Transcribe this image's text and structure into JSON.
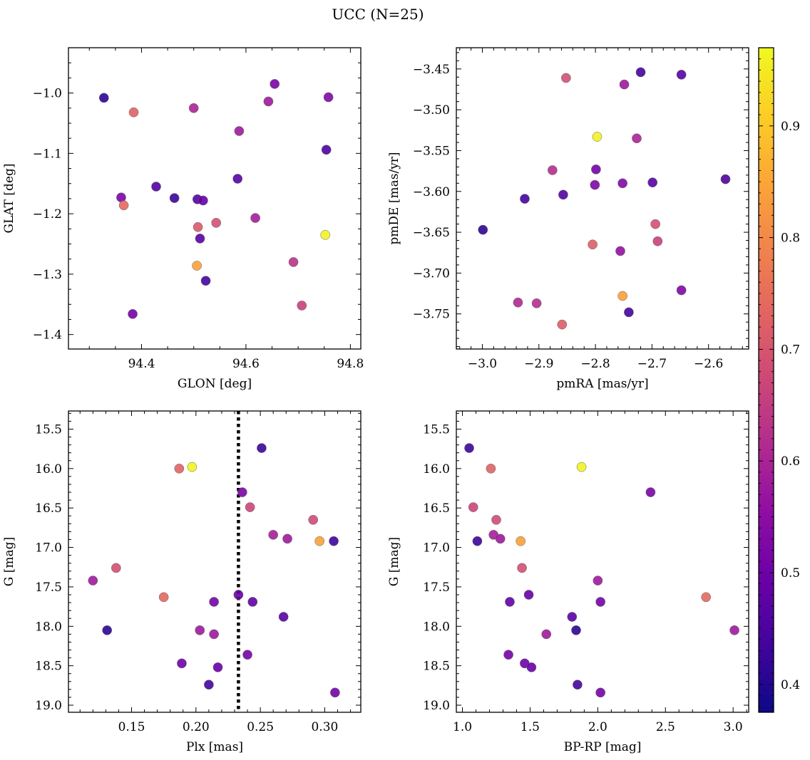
{
  "figure": {
    "title": "UCC (N=25)"
  },
  "colorbar": {
    "min": 0.375,
    "max": 0.97,
    "ticks": [
      0.4,
      0.5,
      0.6,
      0.7,
      0.8,
      0.9
    ],
    "tick_labels": [
      "0.4",
      "0.5",
      "0.6",
      "0.7",
      "0.8",
      "0.9"
    ],
    "colormap": "plasma"
  },
  "chart_data": [
    {
      "type": "scatter",
      "title": "",
      "xlabel": "GLON [deg]",
      "ylabel": "GLAT [deg]",
      "xlim": [
        94.26,
        94.82
      ],
      "ylim": [
        -1.424,
        -0.925
      ],
      "yinvert": false,
      "xticks": [
        94.4,
        94.6,
        94.8
      ],
      "xtick_labels": [
        "94.4",
        "94.6",
        "94.8"
      ],
      "xminor": 0.05,
      "yticks": [
        -1.0,
        -1.1,
        -1.2,
        -1.3,
        -1.4
      ],
      "ytick_labels": [
        "−1.0",
        "−1.1",
        "−1.2",
        "−1.3",
        "−1.4"
      ],
      "yminor": 0.025,
      "vline": null,
      "points": [
        {
          "x": 94.328,
          "y": -1.008,
          "c": 0.41
        },
        {
          "x": 94.385,
          "y": -1.032,
          "c": 0.73
        },
        {
          "x": 94.5,
          "y": -1.025,
          "c": 0.6
        },
        {
          "x": 94.655,
          "y": -0.985,
          "c": 0.52
        },
        {
          "x": 94.643,
          "y": -1.014,
          "c": 0.58
        },
        {
          "x": 94.758,
          "y": -1.007,
          "c": 0.53
        },
        {
          "x": 94.587,
          "y": -1.063,
          "c": 0.58
        },
        {
          "x": 94.754,
          "y": -1.094,
          "c": 0.45
        },
        {
          "x": 94.584,
          "y": -1.142,
          "c": 0.47
        },
        {
          "x": 94.428,
          "y": -1.155,
          "c": 0.46
        },
        {
          "x": 94.361,
          "y": -1.173,
          "c": 0.52
        },
        {
          "x": 94.463,
          "y": -1.174,
          "c": 0.43
        },
        {
          "x": 94.507,
          "y": -1.176,
          "c": 0.46
        },
        {
          "x": 94.518,
          "y": -1.178,
          "c": 0.49
        },
        {
          "x": 94.366,
          "y": -1.186,
          "c": 0.74
        },
        {
          "x": 94.618,
          "y": -1.207,
          "c": 0.59
        },
        {
          "x": 94.543,
          "y": -1.215,
          "c": 0.69
        },
        {
          "x": 94.508,
          "y": -1.222,
          "c": 0.71
        },
        {
          "x": 94.752,
          "y": -1.235,
          "c": 0.96
        },
        {
          "x": 94.512,
          "y": -1.241,
          "c": 0.47
        },
        {
          "x": 94.691,
          "y": -1.28,
          "c": 0.63
        },
        {
          "x": 94.506,
          "y": -1.286,
          "c": 0.84
        },
        {
          "x": 94.523,
          "y": -1.311,
          "c": 0.44
        },
        {
          "x": 94.707,
          "y": -1.352,
          "c": 0.66
        },
        {
          "x": 94.383,
          "y": -1.366,
          "c": 0.51
        }
      ]
    },
    {
      "type": "scatter",
      "title": "",
      "xlabel": "pmRA [mas/yr]",
      "ylabel": "pmDE [mas/yr]",
      "xlim": [
        -3.046,
        -2.529
      ],
      "ylim": [
        -3.793,
        -3.424
      ],
      "yinvert": false,
      "xticks": [
        -3.0,
        -2.9,
        -2.8,
        -2.7,
        -2.6
      ],
      "xtick_labels": [
        "−3.0",
        "−2.9",
        "−2.8",
        "−2.7",
        "−2.6"
      ],
      "xminor": 0.02,
      "yticks": [
        -3.45,
        -3.5,
        -3.55,
        -3.6,
        -3.65,
        -3.7,
        -3.75
      ],
      "ytick_labels": [
        "−3.45",
        "−3.50",
        "−3.55",
        "−3.60",
        "−3.65",
        "−3.70",
        "−3.75"
      ],
      "yminor": 0.01,
      "vline": null,
      "points": [
        {
          "x": -2.72,
          "y": -3.454,
          "c": 0.44
        },
        {
          "x": -2.648,
          "y": -3.457,
          "c": 0.47
        },
        {
          "x": -2.852,
          "y": -3.461,
          "c": 0.69
        },
        {
          "x": -2.749,
          "y": -3.469,
          "c": 0.58
        },
        {
          "x": -2.797,
          "y": -3.533,
          "c": 0.96
        },
        {
          "x": -2.727,
          "y": -3.535,
          "c": 0.6
        },
        {
          "x": -2.876,
          "y": -3.574,
          "c": 0.62
        },
        {
          "x": -2.799,
          "y": -3.573,
          "c": 0.51
        },
        {
          "x": -2.57,
          "y": -3.585,
          "c": 0.45
        },
        {
          "x": -2.699,
          "y": -3.589,
          "c": 0.47
        },
        {
          "x": -2.752,
          "y": -3.59,
          "c": 0.53
        },
        {
          "x": -2.801,
          "y": -3.592,
          "c": 0.53
        },
        {
          "x": -2.857,
          "y": -3.604,
          "c": 0.46
        },
        {
          "x": -2.925,
          "y": -3.609,
          "c": 0.44
        },
        {
          "x": -2.694,
          "y": -3.64,
          "c": 0.69
        },
        {
          "x": -2.999,
          "y": -3.647,
          "c": 0.41
        },
        {
          "x": -2.69,
          "y": -3.661,
          "c": 0.66
        },
        {
          "x": -2.805,
          "y": -3.665,
          "c": 0.72
        },
        {
          "x": -2.756,
          "y": -3.673,
          "c": 0.56
        },
        {
          "x": -2.648,
          "y": -3.721,
          "c": 0.53
        },
        {
          "x": -2.752,
          "y": -3.728,
          "c": 0.84
        },
        {
          "x": -2.937,
          "y": -3.736,
          "c": 0.61
        },
        {
          "x": -2.904,
          "y": -3.737,
          "c": 0.62
        },
        {
          "x": -2.741,
          "y": -3.748,
          "c": 0.44
        },
        {
          "x": -2.859,
          "y": -3.763,
          "c": 0.72
        }
      ]
    },
    {
      "type": "scatter",
      "title": "",
      "xlabel": "Plx [mas]",
      "ylabel": "G [mag]",
      "xlim": [
        0.101,
        0.328
      ],
      "ylim": [
        15.27,
        19.09
      ],
      "yinvert": true,
      "xticks": [
        0.15,
        0.2,
        0.25,
        0.3
      ],
      "xtick_labels": [
        "0.15",
        "0.20",
        "0.25",
        "0.30"
      ],
      "xminor": 0.01,
      "yticks": [
        15.5,
        16.0,
        16.5,
        17.0,
        17.5,
        18.0,
        18.5,
        19.0
      ],
      "ytick_labels": [
        "15.5",
        "16.0",
        "16.5",
        "17.0",
        "17.5",
        "18.0",
        "18.5",
        "19.0"
      ],
      "yminor": 0.1,
      "vline": {
        "x": 0.233,
        "style": "dotted"
      },
      "points": [
        {
          "x": 0.251,
          "y": 15.74,
          "c": 0.43
        },
        {
          "x": 0.187,
          "y": 16.0,
          "c": 0.73
        },
        {
          "x": 0.197,
          "y": 15.98,
          "c": 0.96
        },
        {
          "x": 0.236,
          "y": 16.3,
          "c": 0.52
        },
        {
          "x": 0.242,
          "y": 16.49,
          "c": 0.67
        },
        {
          "x": 0.291,
          "y": 16.65,
          "c": 0.68
        },
        {
          "x": 0.26,
          "y": 16.84,
          "c": 0.59
        },
        {
          "x": 0.271,
          "y": 16.89,
          "c": 0.58
        },
        {
          "x": 0.296,
          "y": 16.92,
          "c": 0.84
        },
        {
          "x": 0.307,
          "y": 16.92,
          "c": 0.43
        },
        {
          "x": 0.138,
          "y": 17.26,
          "c": 0.69
        },
        {
          "x": 0.12,
          "y": 17.42,
          "c": 0.58
        },
        {
          "x": 0.175,
          "y": 17.63,
          "c": 0.74
        },
        {
          "x": 0.233,
          "y": 17.6,
          "c": 0.49
        },
        {
          "x": 0.214,
          "y": 17.69,
          "c": 0.51
        },
        {
          "x": 0.244,
          "y": 17.69,
          "c": 0.48
        },
        {
          "x": 0.268,
          "y": 17.88,
          "c": 0.47
        },
        {
          "x": 0.131,
          "y": 18.05,
          "c": 0.41
        },
        {
          "x": 0.203,
          "y": 18.05,
          "c": 0.58
        },
        {
          "x": 0.214,
          "y": 18.1,
          "c": 0.58
        },
        {
          "x": 0.24,
          "y": 18.36,
          "c": 0.51
        },
        {
          "x": 0.189,
          "y": 18.47,
          "c": 0.5
        },
        {
          "x": 0.217,
          "y": 18.52,
          "c": 0.49
        },
        {
          "x": 0.21,
          "y": 18.74,
          "c": 0.44
        },
        {
          "x": 0.308,
          "y": 18.84,
          "c": 0.51
        }
      ]
    },
    {
      "type": "scatter",
      "title": "",
      "xlabel": "BP-RP [mag]",
      "ylabel": "G [mag]",
      "xlim": [
        0.955,
        3.115
      ],
      "ylim": [
        15.27,
        19.09
      ],
      "yinvert": true,
      "xticks": [
        1.0,
        1.5,
        2.0,
        2.5,
        3.0
      ],
      "xtick_labels": [
        "1.0",
        "1.5",
        "2.0",
        "2.5",
        "3.0"
      ],
      "xminor": 0.1,
      "yticks": [
        15.5,
        16.0,
        16.5,
        17.0,
        17.5,
        18.0,
        18.5,
        19.0
      ],
      "ytick_labels": [
        "15.5",
        "16.0",
        "16.5",
        "17.0",
        "17.5",
        "18.0",
        "18.5",
        "19.0"
      ],
      "yminor": 0.1,
      "vline": null,
      "points": [
        {
          "x": 1.05,
          "y": 15.74,
          "c": 0.43
        },
        {
          "x": 1.21,
          "y": 16.0,
          "c": 0.73
        },
        {
          "x": 1.88,
          "y": 15.98,
          "c": 0.96
        },
        {
          "x": 2.39,
          "y": 16.3,
          "c": 0.52
        },
        {
          "x": 1.08,
          "y": 16.49,
          "c": 0.67
        },
        {
          "x": 1.25,
          "y": 16.65,
          "c": 0.68
        },
        {
          "x": 1.23,
          "y": 16.84,
          "c": 0.59
        },
        {
          "x": 1.28,
          "y": 16.89,
          "c": 0.58
        },
        {
          "x": 1.43,
          "y": 16.92,
          "c": 0.84
        },
        {
          "x": 1.11,
          "y": 16.92,
          "c": 0.43
        },
        {
          "x": 1.44,
          "y": 17.26,
          "c": 0.69
        },
        {
          "x": 2.0,
          "y": 17.42,
          "c": 0.58
        },
        {
          "x": 2.8,
          "y": 17.63,
          "c": 0.74
        },
        {
          "x": 1.49,
          "y": 17.6,
          "c": 0.49
        },
        {
          "x": 2.02,
          "y": 17.69,
          "c": 0.51
        },
        {
          "x": 1.35,
          "y": 17.69,
          "c": 0.48
        },
        {
          "x": 1.81,
          "y": 17.88,
          "c": 0.47
        },
        {
          "x": 1.84,
          "y": 18.05,
          "c": 0.41
        },
        {
          "x": 3.01,
          "y": 18.05,
          "c": 0.58
        },
        {
          "x": 1.62,
          "y": 18.1,
          "c": 0.58
        },
        {
          "x": 1.34,
          "y": 18.36,
          "c": 0.51
        },
        {
          "x": 1.46,
          "y": 18.47,
          "c": 0.5
        },
        {
          "x": 1.51,
          "y": 18.52,
          "c": 0.49
        },
        {
          "x": 1.85,
          "y": 18.74,
          "c": 0.44
        },
        {
          "x": 2.02,
          "y": 18.84,
          "c": 0.51
        }
      ]
    }
  ]
}
